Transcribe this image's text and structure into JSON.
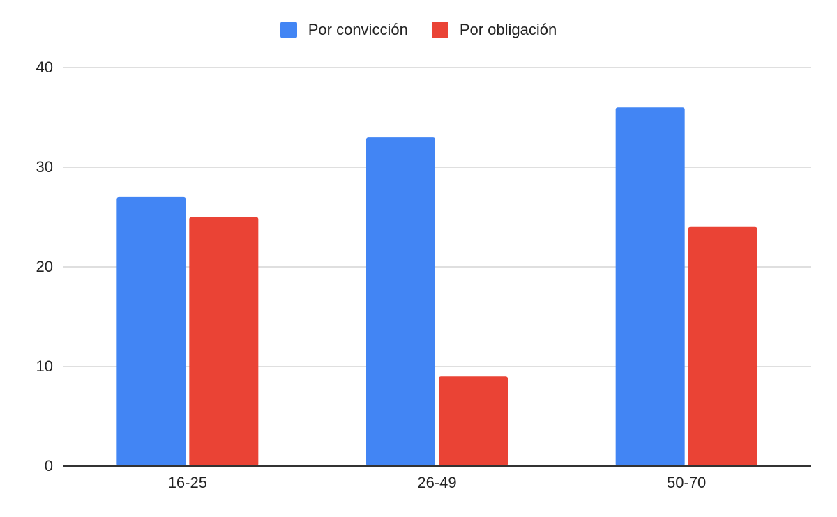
{
  "chart_data": {
    "type": "bar",
    "categories": [
      "16-25",
      "26-49",
      "50-70"
    ],
    "series": [
      {
        "name": "Por convicción",
        "values": [
          27,
          33,
          36
        ],
        "color": "#4285F4"
      },
      {
        "name": "Por obligación",
        "values": [
          25,
          9,
          24
        ],
        "color": "#EA4335"
      }
    ],
    "ylim": [
      0,
      40
    ],
    "yticks": [
      0,
      10,
      20,
      30,
      40
    ],
    "grid": true,
    "legend_position": "top"
  }
}
